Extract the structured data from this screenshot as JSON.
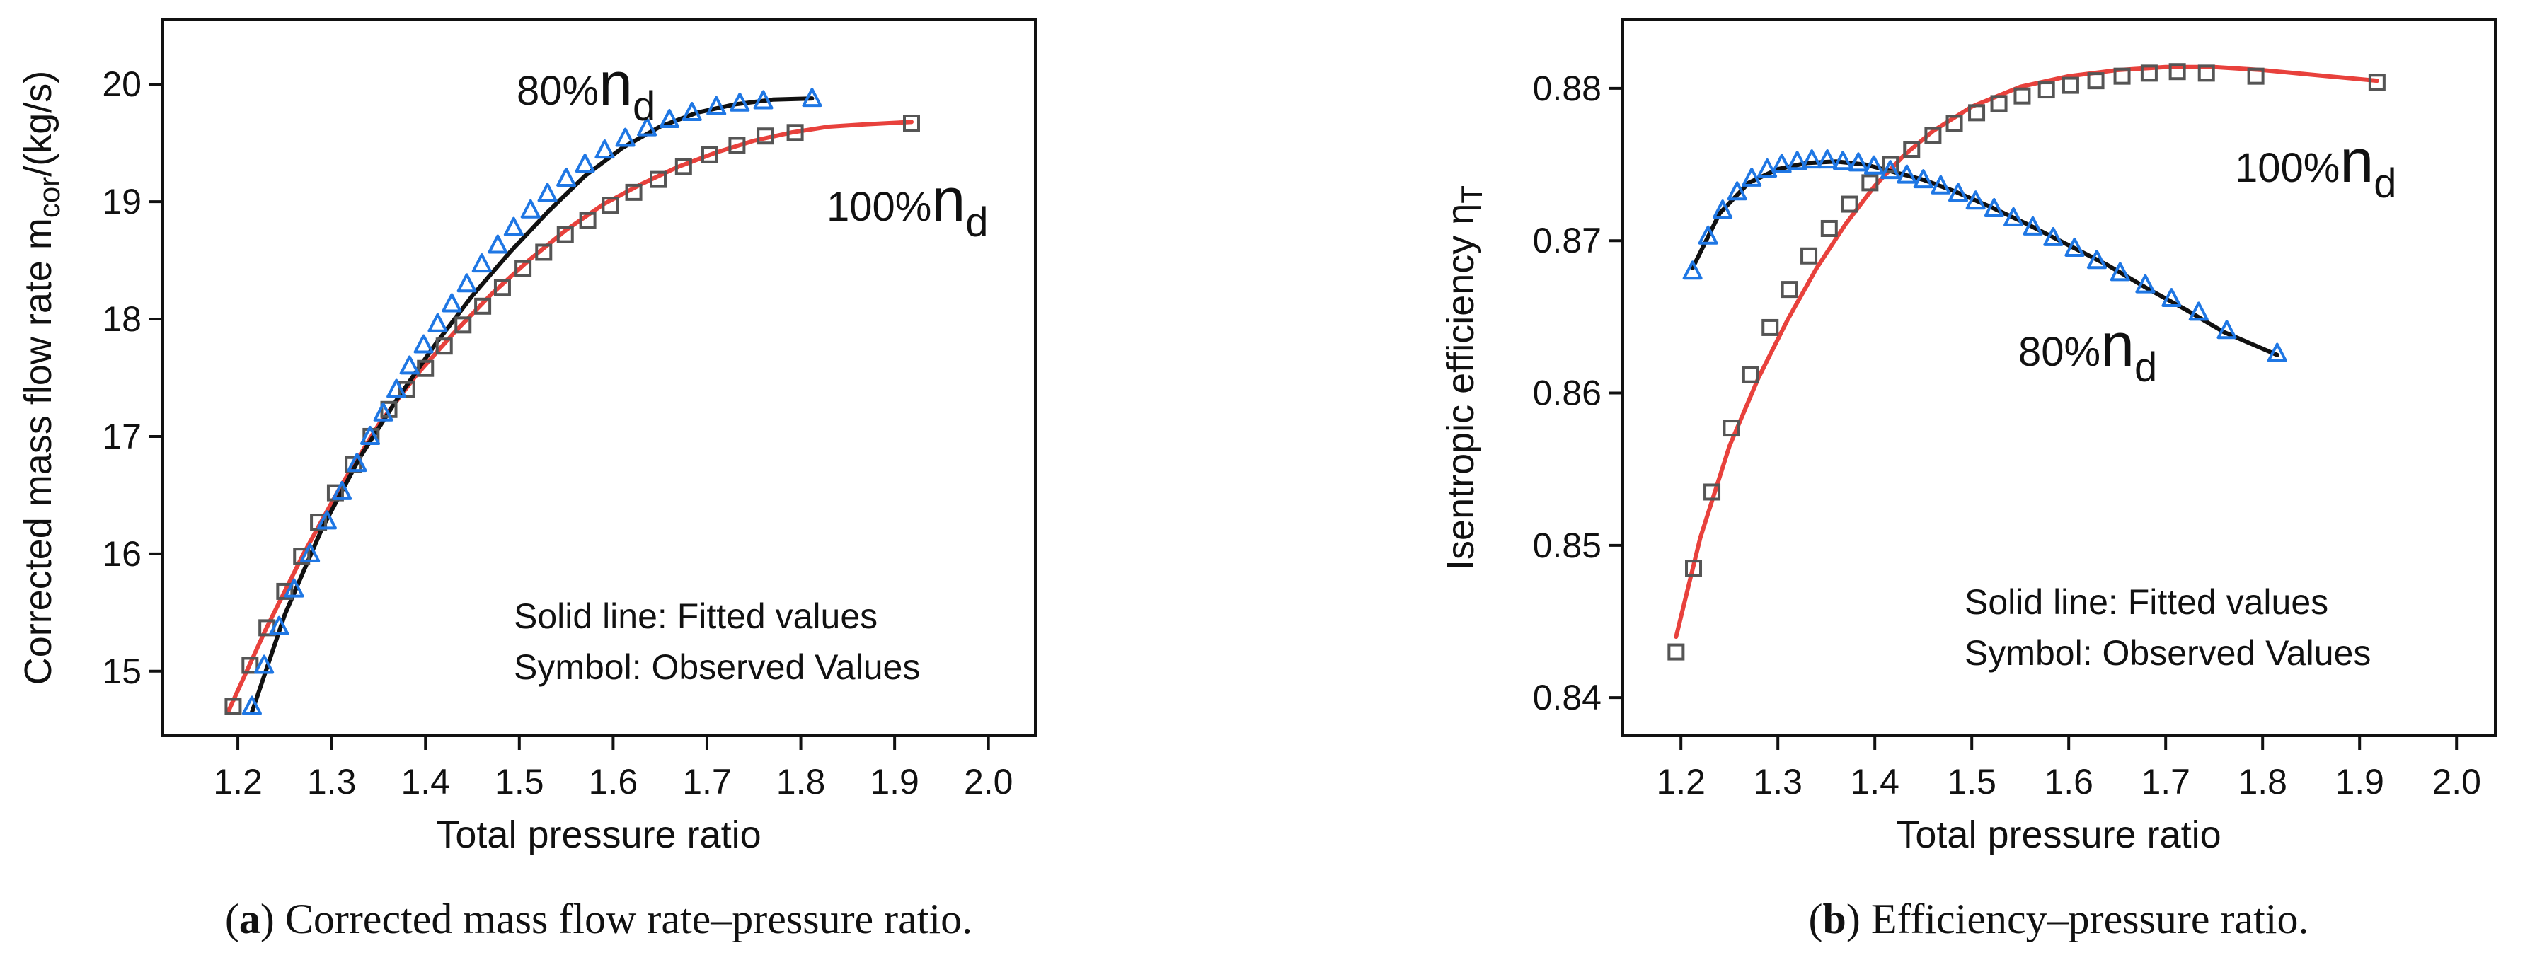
{
  "panels": [
    {
      "caption": {
        "letter": "a",
        "text": " Corrected mass flow rate–pressure ratio."
      },
      "annotations": {
        "line1": "Solid line: Fitted values",
        "line2": "Symbol: Observed Values",
        "label_80": {
          "prefix": "80%",
          "n": "n",
          "sub": "d"
        },
        "label_100": {
          "prefix": "100%",
          "n": "n",
          "sub": "d"
        }
      },
      "ylabel": {
        "main": "Corrected mass flow rate m",
        "sub": "cor",
        "tail": "/(kg/s)"
      }
    },
    {
      "caption": {
        "letter": "b",
        "text": " Efficiency–pressure ratio."
      },
      "annotations": {
        "line1": "Solid line: Fitted values",
        "line2": "Symbol: Observed Values",
        "label_80": {
          "prefix": "80%",
          "n": "n",
          "sub": "d"
        },
        "label_100": {
          "prefix": "100%",
          "n": "n",
          "sub": "d"
        }
      },
      "ylabel": {
        "main": "Isentropic efficiency η",
        "sub": "T",
        "tail": ""
      }
    }
  ],
  "chart_data": [
    {
      "type": "scatter",
      "title": "",
      "xlabel": "Total pressure ratio",
      "ylabel": "Corrected mass flow rate mcor/(kg/s)",
      "xlim": [
        1.12,
        2.05
      ],
      "ylim": [
        14.45,
        20.55
      ],
      "xticks": [
        1.2,
        1.3,
        1.4,
        1.5,
        1.6,
        1.7,
        1.8,
        1.9,
        2.0
      ],
      "yticks": [
        15,
        16,
        17,
        18,
        19,
        20
      ],
      "xtick_labels": [
        "1.2",
        "1.3",
        "1.4",
        "1.5",
        "1.6",
        "1.7",
        "1.8",
        "1.9",
        "2.0"
      ],
      "ytick_labels": [
        "15",
        "16",
        "17",
        "18",
        "19",
        "20"
      ],
      "grid": false,
      "series": [
        {
          "name": "100%nd observed",
          "marker": "square",
          "color": "#555555",
          "x": [
            1.195,
            1.213,
            1.231,
            1.25,
            1.268,
            1.286,
            1.304,
            1.323,
            1.342,
            1.361,
            1.38,
            1.4,
            1.42,
            1.44,
            1.461,
            1.482,
            1.504,
            1.526,
            1.549,
            1.573,
            1.597,
            1.622,
            1.648,
            1.675,
            1.703,
            1.732,
            1.762,
            1.794,
            1.918
          ],
          "values": [
            14.7,
            15.05,
            15.37,
            15.68,
            15.98,
            16.27,
            16.52,
            16.76,
            17.0,
            17.23,
            17.4,
            17.58,
            17.77,
            17.95,
            18.11,
            18.27,
            18.43,
            18.57,
            18.72,
            18.84,
            18.97,
            19.08,
            19.19,
            19.3,
            19.4,
            19.48,
            19.56,
            19.59,
            19.67
          ]
        },
        {
          "name": "80%nd observed",
          "marker": "triangle",
          "color": "#1f77e4",
          "x": [
            1.215,
            1.228,
            1.244,
            1.26,
            1.277,
            1.295,
            1.311,
            1.327,
            1.341,
            1.355,
            1.369,
            1.383,
            1.398,
            1.413,
            1.428,
            1.444,
            1.46,
            1.477,
            1.494,
            1.512,
            1.53,
            1.55,
            1.57,
            1.591,
            1.613,
            1.636,
            1.66,
            1.684,
            1.71,
            1.735,
            1.76,
            1.812
          ],
          "values": [
            14.7,
            15.05,
            15.38,
            15.7,
            16.0,
            16.28,
            16.53,
            16.77,
            17.0,
            17.2,
            17.4,
            17.6,
            17.78,
            17.96,
            18.13,
            18.3,
            18.47,
            18.63,
            18.78,
            18.93,
            19.07,
            19.2,
            19.32,
            19.44,
            19.54,
            19.63,
            19.7,
            19.76,
            19.81,
            19.84,
            19.86,
            19.88
          ]
        },
        {
          "name": "100%nd fitted",
          "type": "line",
          "color": "#e8413c",
          "x": [
            1.19,
            1.23,
            1.27,
            1.31,
            1.35,
            1.39,
            1.43,
            1.47,
            1.51,
            1.55,
            1.59,
            1.63,
            1.67,
            1.71,
            1.75,
            1.79,
            1.83,
            1.87,
            1.918
          ],
          "values": [
            14.66,
            15.36,
            16.0,
            16.58,
            17.1,
            17.52,
            17.88,
            18.21,
            18.5,
            18.76,
            18.98,
            19.15,
            19.3,
            19.42,
            19.52,
            19.59,
            19.64,
            19.66,
            19.68
          ]
        },
        {
          "name": "80%nd fitted",
          "type": "line",
          "color": "#111111",
          "x": [
            1.215,
            1.25,
            1.29,
            1.33,
            1.37,
            1.41,
            1.45,
            1.49,
            1.53,
            1.57,
            1.61,
            1.65,
            1.69,
            1.73,
            1.77,
            1.812
          ],
          "values": [
            14.65,
            15.48,
            16.22,
            16.82,
            17.32,
            17.78,
            18.2,
            18.57,
            18.91,
            19.22,
            19.46,
            19.64,
            19.76,
            19.83,
            19.87,
            19.88
          ]
        }
      ]
    },
    {
      "type": "scatter",
      "title": "",
      "xlabel": "Total pressure ratio",
      "ylabel": "Isentropic efficiency ηT",
      "xlim": [
        1.14,
        2.04
      ],
      "ylim": [
        0.8375,
        0.8845
      ],
      "xticks": [
        1.2,
        1.3,
        1.4,
        1.5,
        1.6,
        1.7,
        1.8,
        1.9,
        2.0
      ],
      "yticks": [
        0.84,
        0.85,
        0.86,
        0.87,
        0.88
      ],
      "xtick_labels": [
        "1.2",
        "1.3",
        "1.4",
        "1.5",
        "1.6",
        "1.7",
        "1.8",
        "1.9",
        "2.0"
      ],
      "ytick_labels": [
        "0.84",
        "0.85",
        "0.86",
        "0.87",
        "0.88"
      ],
      "grid": false,
      "series": [
        {
          "name": "100%nd observed",
          "marker": "square",
          "color": "#555555",
          "x": [
            1.195,
            1.213,
            1.232,
            1.252,
            1.272,
            1.292,
            1.312,
            1.332,
            1.353,
            1.374,
            1.395,
            1.416,
            1.438,
            1.46,
            1.482,
            1.505,
            1.528,
            1.552,
            1.577,
            1.602,
            1.628,
            1.655,
            1.683,
            1.712,
            1.742,
            1.793,
            1.918
          ],
          "values": [
            0.843,
            0.8485,
            0.8535,
            0.8577,
            0.8612,
            0.8643,
            0.8668,
            0.869,
            0.8708,
            0.8724,
            0.8738,
            0.875,
            0.876,
            0.8769,
            0.8777,
            0.8784,
            0.879,
            0.8795,
            0.8799,
            0.8802,
            0.8805,
            0.8808,
            0.881,
            0.8811,
            0.881,
            0.8808,
            0.8804
          ]
        },
        {
          "name": "80%nd observed",
          "marker": "triangle",
          "color": "#1f77e4",
          "x": [
            1.212,
            1.228,
            1.243,
            1.258,
            1.273,
            1.289,
            1.304,
            1.32,
            1.335,
            1.351,
            1.367,
            1.383,
            1.399,
            1.416,
            1.433,
            1.45,
            1.468,
            1.486,
            1.504,
            1.523,
            1.543,
            1.563,
            1.584,
            1.606,
            1.629,
            1.653,
            1.679,
            1.706,
            1.734,
            1.763,
            1.815
          ],
          "values": [
            0.868,
            0.8703,
            0.872,
            0.8732,
            0.8741,
            0.8747,
            0.875,
            0.8752,
            0.8753,
            0.8753,
            0.8752,
            0.8751,
            0.8749,
            0.8746,
            0.8743,
            0.874,
            0.8736,
            0.8731,
            0.8726,
            0.8721,
            0.8715,
            0.8709,
            0.8702,
            0.8695,
            0.8687,
            0.8679,
            0.8671,
            0.8662,
            0.8653,
            0.8641,
            0.8626
          ]
        },
        {
          "name": "100%nd fitted",
          "type": "line",
          "color": "#e8413c",
          "x": [
            1.195,
            1.22,
            1.25,
            1.28,
            1.31,
            1.34,
            1.37,
            1.4,
            1.43,
            1.46,
            1.5,
            1.55,
            1.6,
            1.65,
            1.7,
            1.75,
            1.8,
            1.85,
            1.918
          ],
          "values": [
            0.844,
            0.8505,
            0.8565,
            0.861,
            0.8648,
            0.8682,
            0.8711,
            0.8736,
            0.8756,
            0.8772,
            0.8788,
            0.8801,
            0.8808,
            0.8812,
            0.8814,
            0.8814,
            0.8812,
            0.8809,
            0.8805
          ]
        },
        {
          "name": "80%nd fitted",
          "type": "line",
          "color": "#111111",
          "x": [
            1.212,
            1.24,
            1.27,
            1.3,
            1.33,
            1.36,
            1.39,
            1.42,
            1.45,
            1.48,
            1.52,
            1.56,
            1.6,
            1.64,
            1.68,
            1.72,
            1.76,
            1.815
          ],
          "values": [
            0.8682,
            0.8718,
            0.8738,
            0.8747,
            0.8751,
            0.8752,
            0.875,
            0.8745,
            0.874,
            0.8733,
            0.8722,
            0.871,
            0.8697,
            0.8684,
            0.8669,
            0.8655,
            0.864,
            0.8625
          ]
        }
      ]
    }
  ]
}
